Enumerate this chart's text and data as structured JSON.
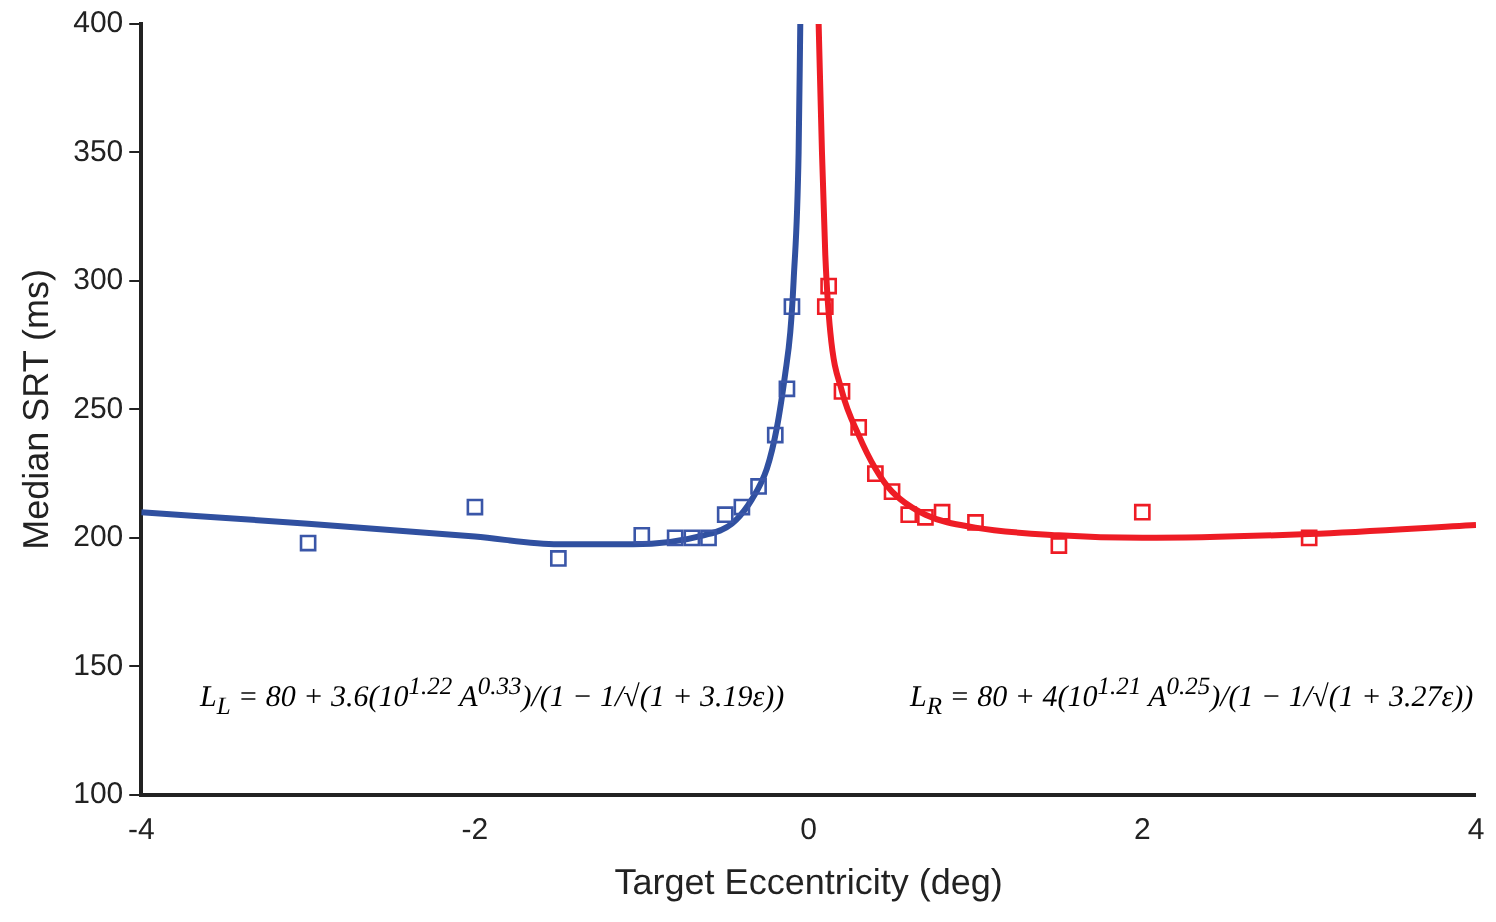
{
  "chart_data": {
    "type": "scatter",
    "xlabel": "Target Eccentricity (deg)",
    "ylabel": "Median SRT (ms)",
    "xlim": [
      -4,
      4
    ],
    "xticks": [
      -4,
      -2,
      0,
      2,
      4
    ],
    "ylim": [
      100,
      400
    ],
    "yticks": [
      100,
      150,
      200,
      250,
      300,
      350,
      400
    ],
    "grid": false,
    "legend": false,
    "series": [
      {
        "marker": "square",
        "color": "#3a56a8",
        "x": [
          -3,
          -2,
          -1.5,
          -1,
          -0.8,
          -0.7,
          -0.6,
          -0.5,
          -0.4,
          -0.3,
          -0.2,
          -0.13,
          -0.1
        ],
        "values": [
          198,
          212,
          192,
          201,
          200,
          200,
          200,
          209,
          212,
          220,
          240,
          258,
          290
        ]
      },
      {
        "marker": "square",
        "color": "#ee1c25",
        "x": [
          0.1,
          0.12,
          0.2,
          0.3,
          0.4,
          0.5,
          0.6,
          0.7,
          0.8,
          1,
          1.5,
          2,
          3
        ],
        "values": [
          290,
          298,
          257,
          243,
          225,
          218,
          209,
          208,
          210,
          206,
          197,
          210,
          200
        ]
      },
      {
        "type": "line",
        "marker": "none",
        "color": "#3050a0",
        "x": [
          -4,
          -3,
          -2,
          -1.5,
          -1.05,
          -0.63,
          -0.46,
          -0.34,
          -0.25,
          -0.19,
          -0.14,
          -0.11,
          -0.09,
          -0.06,
          -0.05
        ],
        "values": [
          210,
          205.5,
          200.5,
          197.5,
          197.5,
          201,
          205.5,
          215,
          227,
          243,
          264,
          280,
          300,
          350,
          400
        ]
      },
      {
        "type": "line",
        "marker": "none",
        "color": "#ee1c25",
        "x": [
          0.06,
          0.08,
          0.1,
          0.13,
          0.2,
          0.3,
          0.4,
          0.5,
          0.7,
          1,
          1.5,
          2,
          3,
          4
        ],
        "values": [
          400,
          350,
          310,
          280,
          257,
          240,
          227,
          218,
          209,
          204,
          201,
          200,
          201.5,
          205
        ]
      }
    ],
    "annotations": [
      "L$_{L}$ = 80 + 3.6(10$^{1.22}$ A$^{0.33}$)/(1 − 1/√(1 + 3.19ε))",
      "L$_{R}$ = 80 + 4(10$^{1.21}$ A$^{0.25}$)/(1 − 1/√(1 + 3.27ε))"
    ]
  }
}
